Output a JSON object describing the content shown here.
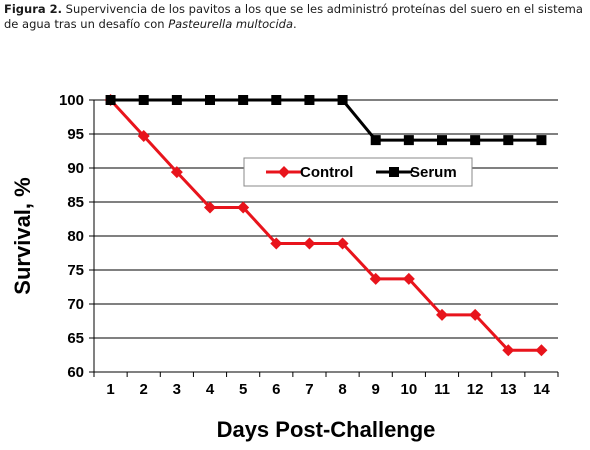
{
  "caption": {
    "label": "Figura 2.",
    "text_before": " Supervivencia de los pavitos a los que se les administró proteínas del suero en el sistema de agua tras un desafío con ",
    "italic": "Pasteurella multocida",
    "text_after": "."
  },
  "chart_data": {
    "type": "line",
    "title": "",
    "xlabel": "Days Post-Challenge",
    "ylabel": "Survival, %",
    "x": [
      1,
      2,
      3,
      4,
      5,
      6,
      7,
      8,
      9,
      10,
      11,
      12,
      13,
      14
    ],
    "ylim": [
      60,
      100
    ],
    "yticks": [
      60,
      65,
      70,
      75,
      80,
      85,
      90,
      95,
      100
    ],
    "grid": "horizontal",
    "legend": "center",
    "series": [
      {
        "name": "Control",
        "color": "#e8141c",
        "marker": "diamond",
        "values": [
          100,
          94.7,
          89.4,
          84.2,
          84.2,
          78.9,
          78.9,
          78.9,
          73.7,
          73.7,
          68.4,
          68.4,
          63.2,
          63.2
        ]
      },
      {
        "name": "Serum",
        "color": "#000000",
        "marker": "square",
        "values": [
          100,
          100,
          100,
          100,
          100,
          100,
          100,
          100,
          94.1,
          94.1,
          94.1,
          94.1,
          94.1,
          94.1
        ]
      }
    ]
  }
}
